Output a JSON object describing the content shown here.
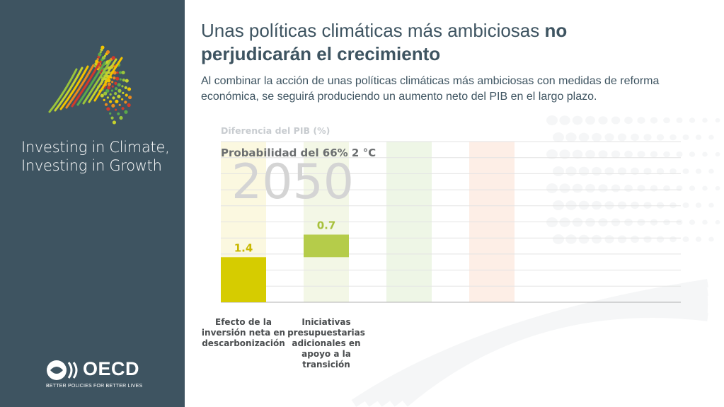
{
  "sidebar": {
    "tagline_line1": "Investing in Climate,",
    "tagline_line2": "Investing in Growth",
    "oecd_word": "OECD",
    "oecd_motto": "BETTER POLICIES FOR BETTER LIVES"
  },
  "header": {
    "title_regular": "Unas políticas climáticas más ambiciosas ",
    "title_bold_1": "no",
    "title_bold_2": "perjudicarán el crecimiento",
    "subtitle": "Al combinar la acción de unas políticas climáticas más ambiciosas con medidas de reforma económica, se seguirá produciendo un aumento neto del PIB en el largo plazo."
  },
  "chart_data": {
    "type": "bar",
    "ylabel": "Diferencia del PIB (%)",
    "scenario": "Probabilidad del 66% 2 °C",
    "year": "2050",
    "categories": [
      "Efecto de la inversión neta en descarbonización",
      "Iniciativas presupuestarias adicionales en apoyo a la transición"
    ],
    "values": [
      1.4,
      0.7
    ],
    "value_labels": [
      "1.4",
      "0.7"
    ],
    "ylim": [
      0,
      5
    ],
    "grid": true,
    "colors": {
      "bar1": "#d6cc00",
      "bar2": "#b5cc4a",
      "label1": "#c9b800",
      "label2": "#a7c03c",
      "column1_bg": "#fbf8e0",
      "column2_bg": "#f3f7e6",
      "column3_bg": "#eef6e6",
      "column4_bg": "#fdeee6"
    }
  }
}
